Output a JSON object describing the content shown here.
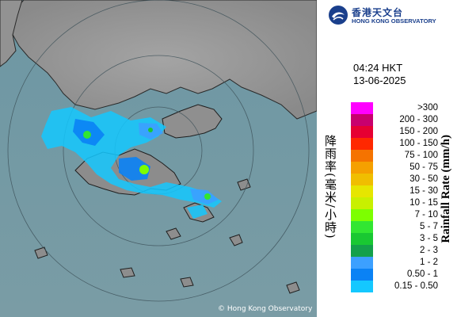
{
  "map": {
    "copyright": "© Hong Kong Observatory"
  },
  "header": {
    "org_name_zh": "香港天文台",
    "org_name_en": "HONG KONG OBSERVATORY",
    "time": "04:24 HKT",
    "date": "13-06-2025"
  },
  "legend": {
    "title_en": "Rainfall Rate (mm/h)",
    "title_zh": "降雨率(毫米/小時)",
    "items": [
      {
        "label": ">300",
        "color": "#ff00ff"
      },
      {
        "label": "200 - 300",
        "color": "#c8006e"
      },
      {
        "label": "150 - 200",
        "color": "#e60032"
      },
      {
        "label": "100 - 150",
        "color": "#ff2800"
      },
      {
        "label": "75 - 100",
        "color": "#f57300"
      },
      {
        "label": "50 - 75",
        "color": "#f5a000"
      },
      {
        "label": "30 - 50",
        "color": "#f0be00"
      },
      {
        "label": "15 - 30",
        "color": "#e6e600"
      },
      {
        "label": "10 - 15",
        "color": "#c8f000"
      },
      {
        "label": "7 - 10",
        "color": "#7dff00"
      },
      {
        "label": "5 - 7",
        "color": "#32e632"
      },
      {
        "label": "3 - 5",
        "color": "#19c832"
      },
      {
        "label": "2 - 3",
        "color": "#14a04b"
      },
      {
        "label": "1 - 2",
        "color": "#3ca0ff"
      },
      {
        "label": "0.50 - 1",
        "color": "#0a82f5"
      },
      {
        "label": "0.15 - 0.50",
        "color": "#14c8ff"
      }
    ]
  }
}
